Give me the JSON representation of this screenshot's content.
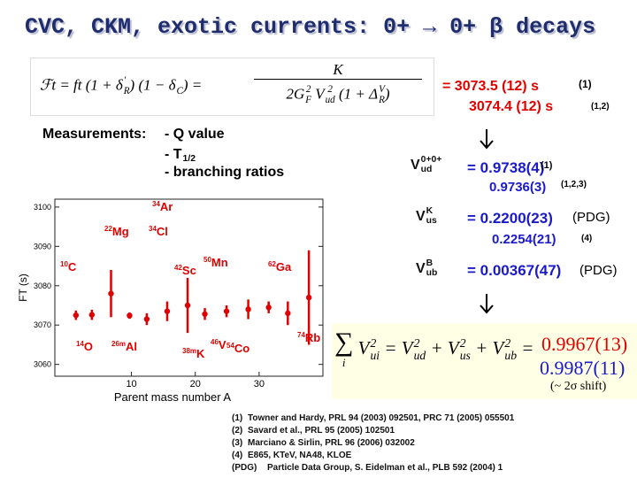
{
  "title": "CVC, CKM, exotic currents: 0+ → 0+ β decays",
  "formula": {
    "lhs": [
      {
        "t": "ℱt = ft (1 + δ",
        "sub": "R",
        "sup": "′"
      },
      {
        "t": ") (1 − δ",
        "sub": "C"
      },
      {
        "t": ") ="
      }
    ],
    "numerator": [
      {
        "t": "K"
      }
    ],
    "denominator": [
      {
        "t": "2G",
        "sub": "F",
        "sup": "2"
      },
      {
        "t": " V",
        "sub": "ud",
        "sup": "2"
      },
      {
        "t": " (1 + Δ",
        "sub": "R",
        "sup": "V"
      },
      {
        "t": ")"
      }
    ]
  },
  "ft_results": [
    {
      "value": "= 3073.5 (12) s",
      "ref": "(1)"
    },
    {
      "value": "3074.4 (12) s",
      "ref": "(1,2)"
    }
  ],
  "measurements": {
    "label": "Measurements:",
    "items": [
      [
        {
          "t": "- Q value"
        }
      ],
      [
        {
          "t": "- T",
          "sub": "1/2"
        }
      ],
      [
        {
          "t": "- branching ratios"
        }
      ]
    ]
  },
  "ckm": [
    {
      "symbol": [
        {
          "t": "V",
          "sub": "ud",
          "sup": "0+0+"
        }
      ],
      "values": [
        {
          "value": "= 0.9738(4)",
          "ref": "(1)"
        },
        {
          "value": "0.9736(3)",
          "ref": "(1,2,3)"
        }
      ]
    },
    {
      "symbol": [
        {
          "t": "V",
          "sub": "us",
          "sup": "K"
        }
      ],
      "values": [
        {
          "value": "= 0.2200(23)",
          "ref": "(PDG)"
        },
        {
          "value": "0.2254(21)",
          "ref": "(4)"
        }
      ]
    },
    {
      "symbol": [
        {
          "t": "V",
          "sub": "ub",
          "sup": "B"
        }
      ],
      "values": [
        {
          "value": "= 0.00367(47)",
          "ref": "(PDG)"
        }
      ]
    }
  ],
  "unitarity": {
    "sum": "∑",
    "index": "i",
    "terms": [
      {
        "t": "V",
        "sub": "ui",
        "sup": "2"
      },
      {
        "t": " = V",
        "sub": "ud",
        "sup": "2"
      },
      {
        "t": " + V",
        "sub": "us",
        "sup": "2"
      },
      {
        "t": " + V",
        "sub": "ub",
        "sup": "2"
      },
      {
        "t": " ="
      }
    ],
    "values": [
      "0.9967(13)",
      "0.9987(11)"
    ],
    "note": "(~ 2σ shift)"
  },
  "plot": {
    "type": "scatter",
    "xlabel": "Parent mass number A",
    "ylabel": "FT (s)",
    "xlim": [
      -2,
      40
    ],
    "ylim": [
      3057,
      3102
    ],
    "xticks": [
      10,
      20,
      30
    ],
    "yticks": [
      3060,
      3070,
      3080,
      3090,
      3100
    ],
    "color": "#e00000",
    "x": [
      1.3,
      3.8,
      6.8,
      9.7,
      12.4,
      15.6,
      18.8,
      21.5,
      24.9,
      28.3,
      31.5,
      34.5,
      37.8
    ],
    "y": [
      3072.5,
      3072.6,
      3078,
      3072.4,
      3071.5,
      3073.5,
      3075,
      3072.8,
      3073.5,
      3074,
      3074.5,
      3073,
      3077
    ],
    "err": [
      1.2,
      1.3,
      6,
      0.8,
      1.5,
      2.5,
      7,
      1.5,
      1.5,
      2.5,
      1.5,
      3,
      12
    ],
    "nuclei": [
      {
        "mass": "34",
        "symbol": "Ar"
      },
      {
        "mass": "22",
        "symbol": "Mg"
      },
      {
        "mass": "34",
        "symbol": "Cl"
      },
      {
        "mass": "10",
        "symbol": "C"
      },
      {
        "mass": "42",
        "symbol": "Sc"
      },
      {
        "mass": "50",
        "symbol": "Mn"
      },
      {
        "mass": "62",
        "symbol": "Ga"
      },
      {
        "mass": "14",
        "symbol": "O"
      },
      {
        "mass": "26m",
        "symbol": "Al"
      },
      {
        "mass": "38m",
        "symbol": "K"
      },
      {
        "mass": "46",
        "symbol": "V"
      },
      {
        "mass": "54",
        "symbol": "Co"
      },
      {
        "mass": "74",
        "symbol": "Rb"
      }
    ]
  },
  "references": [
    {
      "marker": "(1)",
      "text": "Towner and Hardy, PRL 94 (2003) 092501, PRC 71 (2005) 055501"
    },
    {
      "marker": "(2)",
      "text": "Savard et al., PRL 95 (2005) 102501"
    },
    {
      "marker": "(3)",
      "text": "Marciano & Sirlin, PRL 96 (2006) 032002"
    },
    {
      "marker": "(4)",
      "text": "E865, KTeV, NA48, KLOE"
    },
    {
      "marker": "(PDG)",
      "text": "Particle Data Group, S. Eidelman et al., PLB 592 (2004) 1"
    }
  ]
}
